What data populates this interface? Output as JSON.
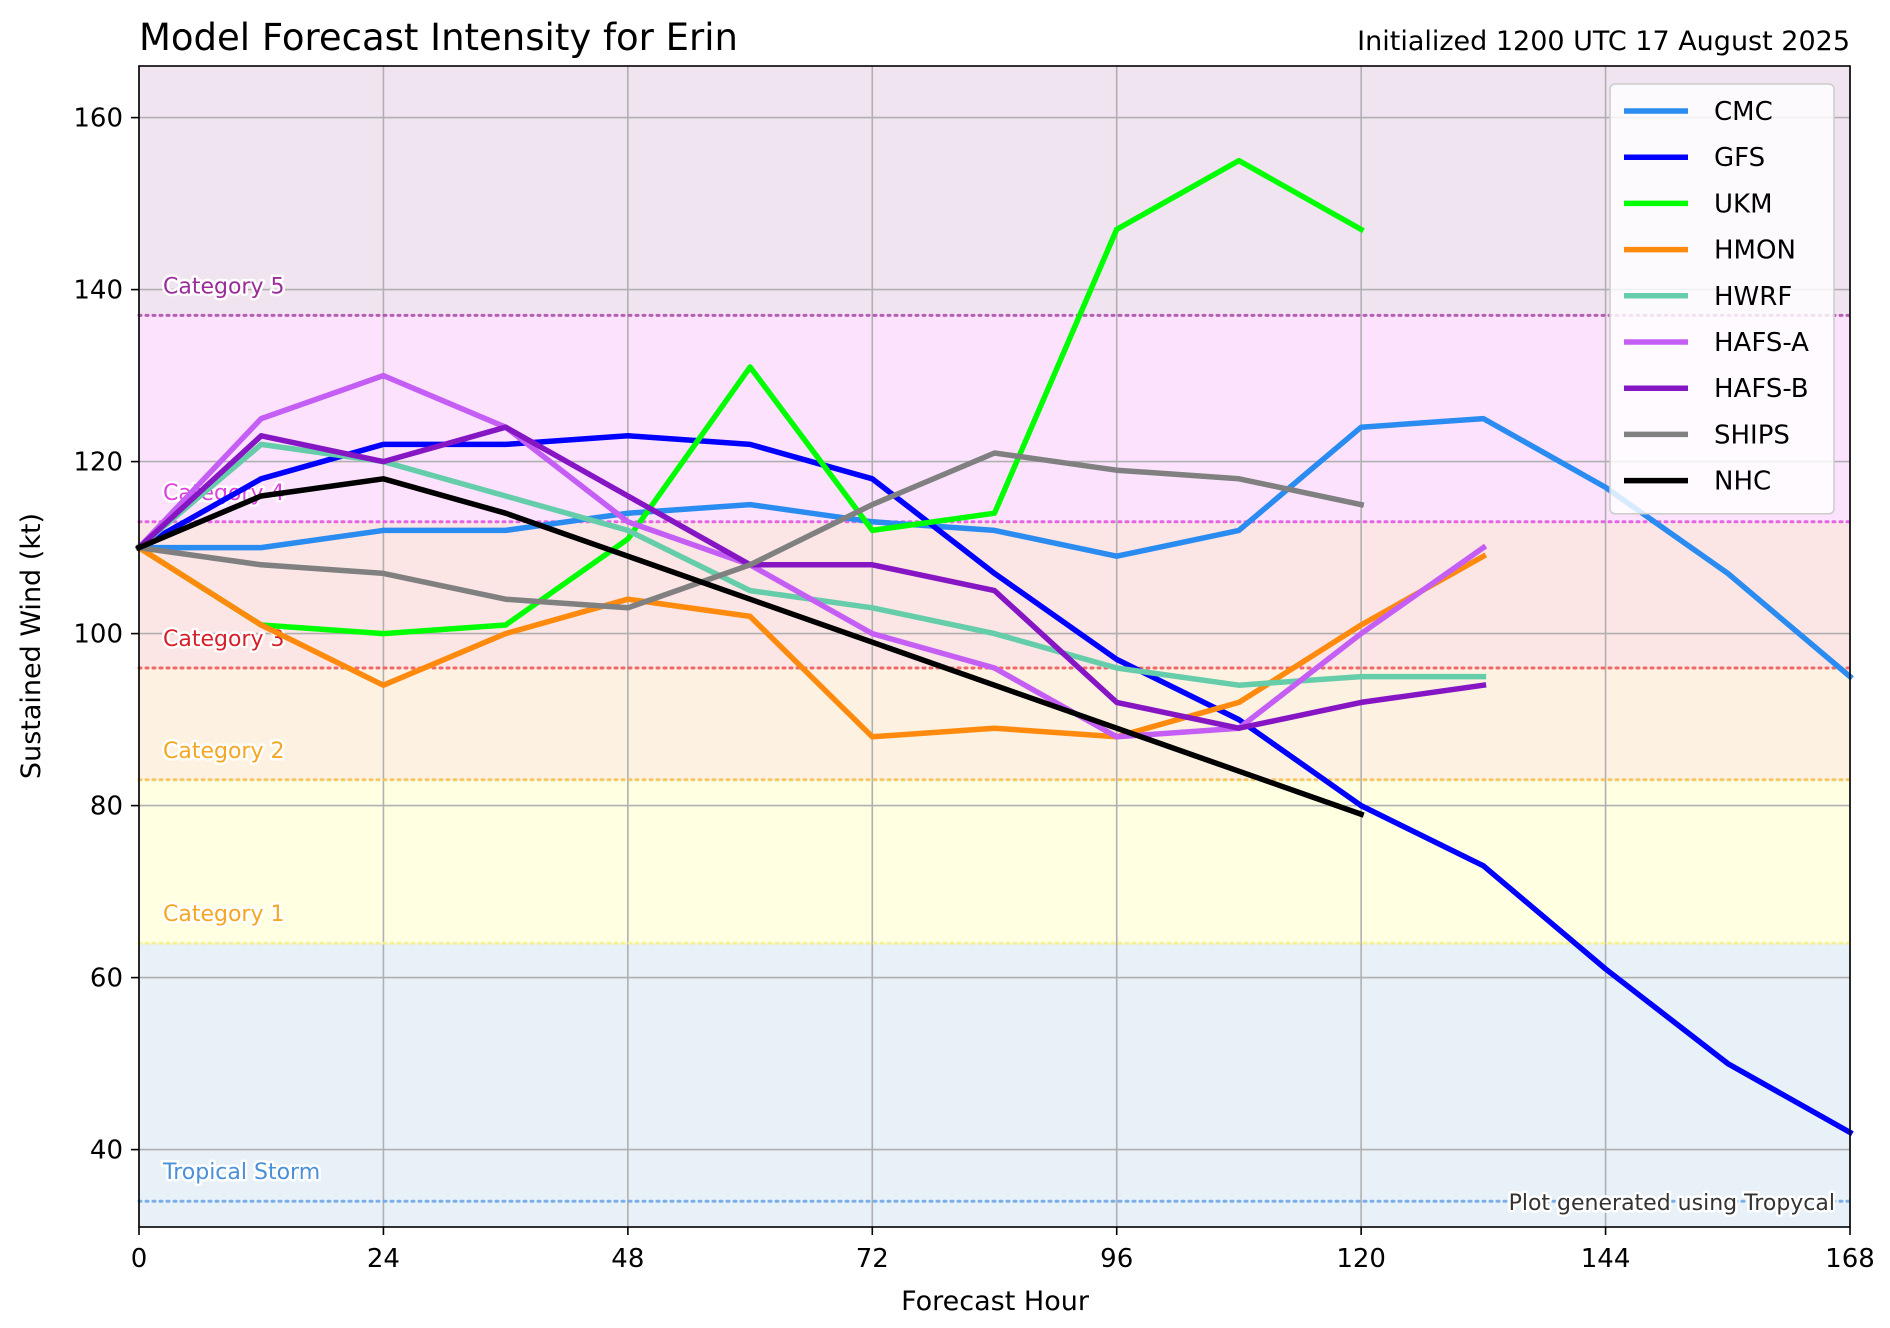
{
  "chart_data": {
    "type": "line",
    "title": "Model Forecast Intensity for Erin",
    "subtitle": "Initialized 1200 UTC 17 August 2025",
    "xlabel": "Forecast Hour",
    "ylabel": "Sustained Wind (kt)",
    "xlim": [
      0,
      168
    ],
    "ylim": [
      31,
      166
    ],
    "xticks": [
      0,
      24,
      48,
      72,
      96,
      120,
      144,
      168
    ],
    "yticks": [
      40,
      60,
      80,
      100,
      120,
      140,
      160
    ],
    "grid": true,
    "legend_position": "top-right",
    "credit": "Plot generated using Tropycal",
    "bands": [
      {
        "label": "Tropical Storm",
        "lower": 31,
        "upper": 64,
        "threshold": 34,
        "fill": "#e8f0f8",
        "line": "#6fa8e6",
        "text_color": "#4a90d9"
      },
      {
        "label": "Category 1",
        "lower": 64,
        "upper": 83,
        "threshold": 64,
        "fill": "#ffffe2",
        "line": "#f6f28a",
        "text_color": "#f5a623"
      },
      {
        "label": "Category 2",
        "lower": 83,
        "upper": 96,
        "threshold": 83,
        "fill": "#fdf2e2",
        "line": "#f8c15a",
        "text_color": "#f5a623"
      },
      {
        "label": "Category 3",
        "lower": 96,
        "upper": 113,
        "threshold": 96,
        "fill": "#fbe5e5",
        "line": "#ef5b5b",
        "text_color": "#d8202a"
      },
      {
        "label": "Category 4",
        "lower": 113,
        "upper": 137,
        "threshold": 113,
        "fill": "#fde2fd",
        "line": "#e05ae0",
        "text_color": "#e040e0"
      },
      {
        "label": "Category 5",
        "lower": 137,
        "upper": 166,
        "threshold": 137,
        "fill": "#f1e4f1",
        "line": "#b04fb0",
        "text_color": "#9b2d9b"
      }
    ],
    "series": [
      {
        "name": "CMC",
        "color": "#2a8cf0",
        "x": [
          0,
          12,
          24,
          36,
          48,
          60,
          72,
          84,
          96,
          108,
          120,
          132,
          144,
          156,
          168
        ],
        "values": [
          110,
          110,
          112,
          112,
          114,
          115,
          113,
          112,
          109,
          112,
          124,
          125,
          117,
          107,
          95
        ]
      },
      {
        "name": "GFS",
        "color": "#0000ff",
        "x": [
          0,
          12,
          24,
          36,
          48,
          60,
          72,
          84,
          96,
          108,
          120,
          132,
          144,
          156,
          168
        ],
        "values": [
          110,
          118,
          122,
          122,
          123,
          122,
          118,
          107,
          97,
          90,
          80,
          73,
          61,
          50,
          42
        ]
      },
      {
        "name": "UKM",
        "color": "#00ff00",
        "x": [
          0,
          12,
          24,
          36,
          48,
          60,
          72,
          84,
          96,
          108,
          120
        ],
        "values": [
          110,
          101,
          100,
          101,
          111,
          131,
          112,
          114,
          147,
          155,
          147
        ]
      },
      {
        "name": "HMON",
        "color": "#ff8a0d",
        "x": [
          0,
          12,
          24,
          36,
          48,
          60,
          72,
          84,
          96,
          108,
          120,
          132
        ],
        "values": [
          110,
          101,
          94,
          100,
          104,
          102,
          88,
          89,
          88,
          92,
          101,
          109
        ]
      },
      {
        "name": "HWRF",
        "color": "#66cdaa",
        "x": [
          0,
          12,
          24,
          36,
          48,
          60,
          72,
          84,
          96,
          108,
          120,
          132
        ],
        "values": [
          110,
          122,
          120,
          116,
          112,
          105,
          103,
          100,
          96,
          94,
          95,
          95
        ]
      },
      {
        "name": "HAFS-A",
        "color": "#c55ef5",
        "x": [
          0,
          12,
          24,
          36,
          48,
          60,
          72,
          84,
          96,
          108,
          120,
          132
        ],
        "values": [
          110,
          125,
          130,
          124,
          113,
          108,
          100,
          96,
          88,
          89,
          100,
          110
        ]
      },
      {
        "name": "HAFS-B",
        "color": "#8615c4",
        "x": [
          0,
          12,
          24,
          36,
          48,
          60,
          72,
          84,
          96,
          108,
          120,
          132
        ],
        "values": [
          110,
          123,
          120,
          124,
          116,
          108,
          108,
          105,
          92,
          89,
          92,
          94
        ]
      },
      {
        "name": "SHIPS",
        "color": "#808080",
        "x": [
          0,
          12,
          24,
          36,
          48,
          60,
          72,
          84,
          96,
          108,
          120
        ],
        "values": [
          110,
          108,
          107,
          104,
          103,
          108,
          115,
          121,
          119,
          118,
          115
        ]
      },
      {
        "name": "NHC",
        "color": "#000000",
        "x": [
          0,
          12,
          24,
          36,
          48,
          60,
          72,
          84,
          96,
          108,
          120
        ],
        "values": [
          110,
          116,
          118,
          114,
          109,
          104,
          99,
          94,
          89,
          84,
          79
        ]
      }
    ]
  }
}
